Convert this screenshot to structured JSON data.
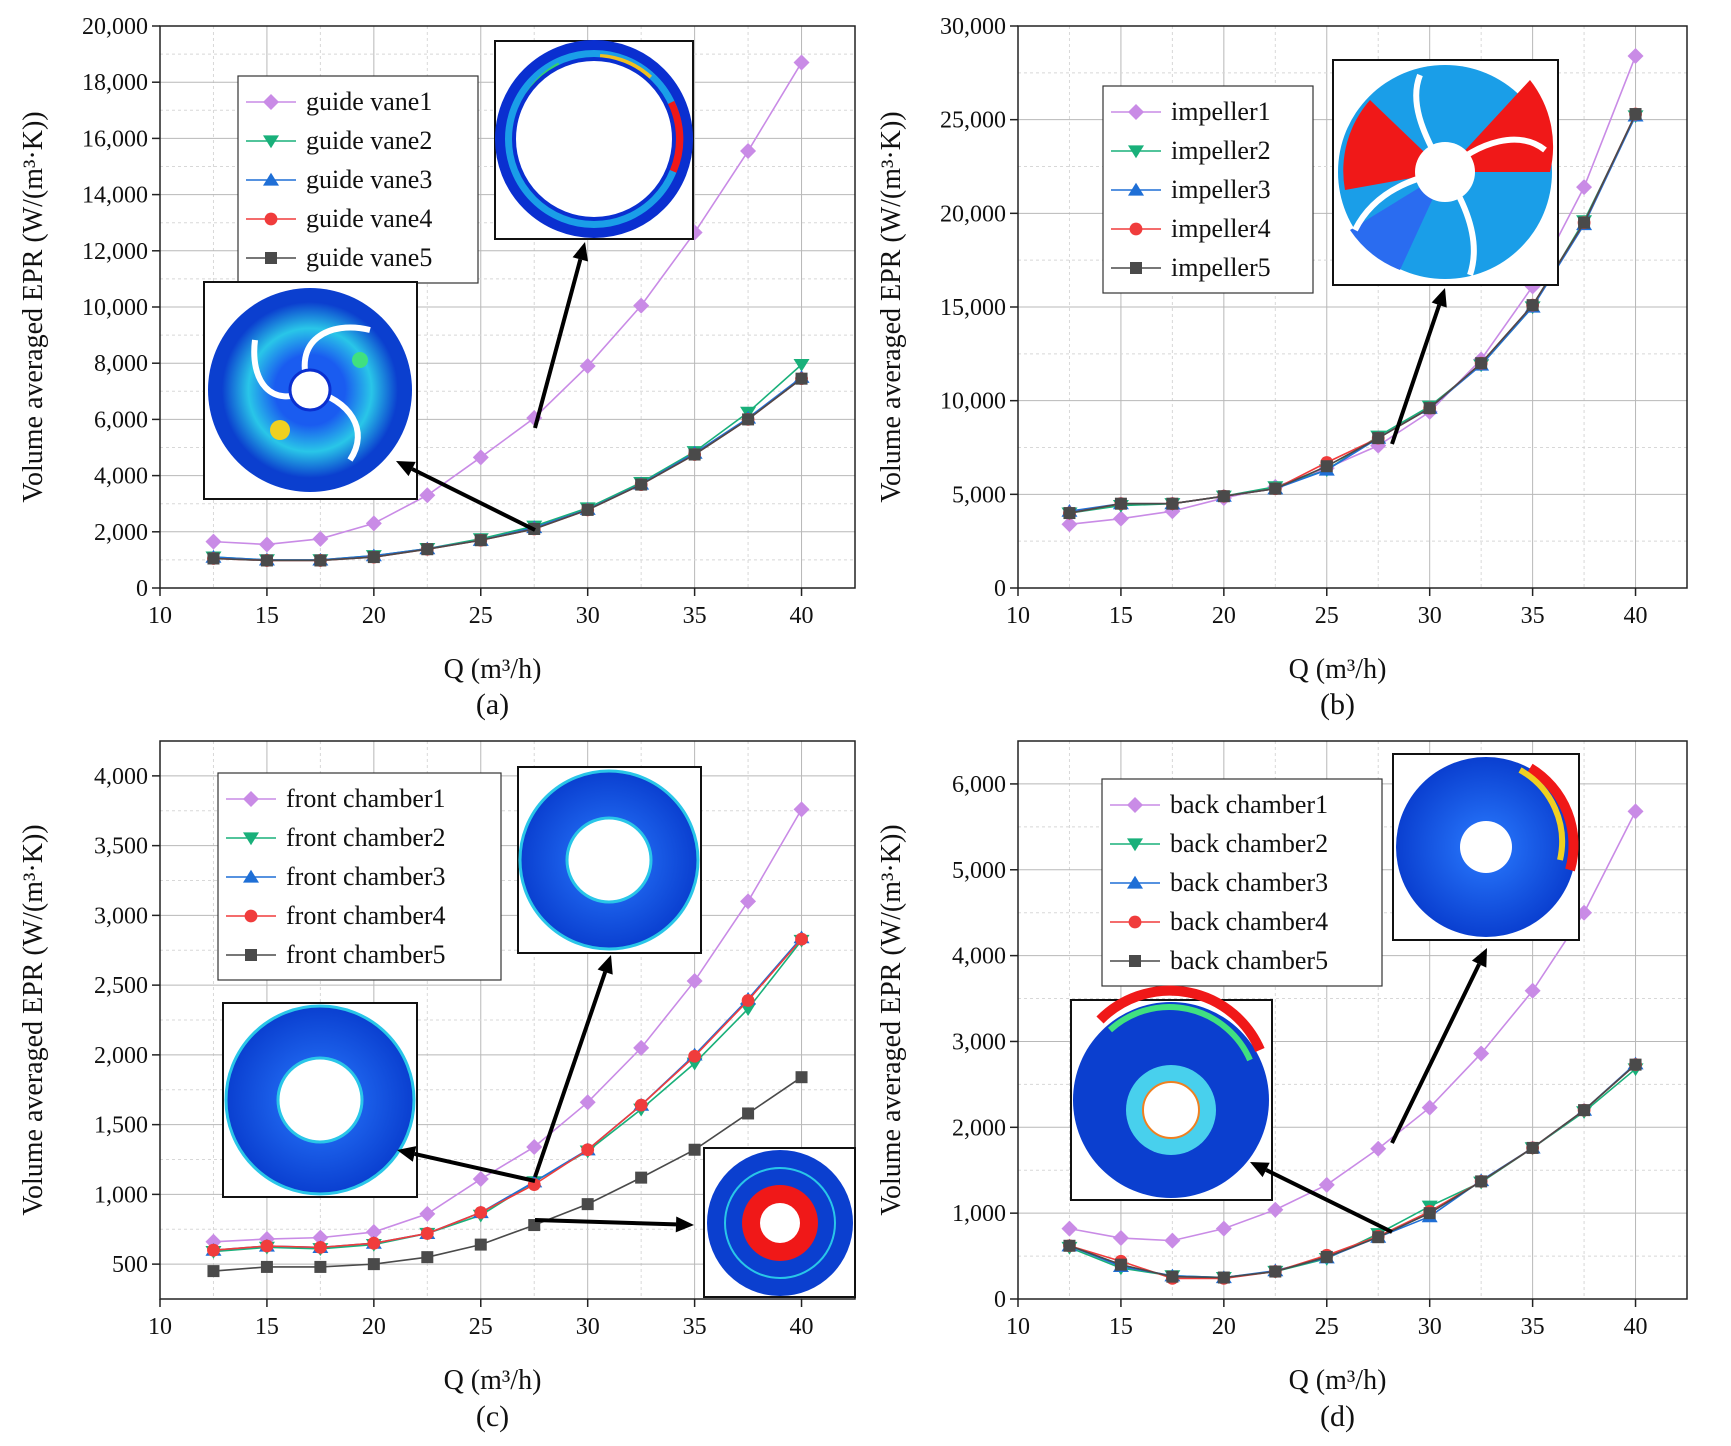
{
  "chart_data": [
    {
      "type": "line",
      "panel_label": "(a)",
      "xlabel": "Q (m³/h)",
      "ylabel": "Volume averaged EPR (W/(m³·K))",
      "xlim": [
        10,
        42.5
      ],
      "ylim": [
        0,
        20000
      ],
      "xticks": [
        10,
        15,
        20,
        25,
        30,
        35,
        40
      ],
      "yticks": [
        0,
        2000,
        4000,
        6000,
        8000,
        10000,
        12000,
        14000,
        16000,
        18000,
        20000
      ],
      "ytick_labels": [
        "0",
        "2,000",
        "4,000",
        "6,000",
        "8,000",
        "10,000",
        "12,000",
        "14,000",
        "16,000",
        "18,000",
        "20,000"
      ],
      "grid": true,
      "legend_position": "top-left",
      "x": [
        12.5,
        15,
        17.5,
        20,
        22.5,
        25,
        27.5,
        30,
        32.5,
        35,
        37.5,
        40
      ],
      "series": [
        {
          "name": "guide vane1",
          "color": "#c98be6",
          "marker": "diamond",
          "values": [
            1650,
            1550,
            1750,
            2300,
            3300,
            4650,
            6050,
            7900,
            10050,
            12650,
            15550,
            18700
          ]
        },
        {
          "name": "guide vane2",
          "color": "#19b07a",
          "marker": "triangle-down",
          "values": [
            1100,
            1000,
            1000,
            1150,
            1400,
            1750,
            2200,
            2850,
            3750,
            4850,
            6250,
            7950
          ]
        },
        {
          "name": "guide vane3",
          "color": "#1f6fd6",
          "marker": "triangle-up",
          "values": [
            1100,
            1000,
            1000,
            1150,
            1400,
            1700,
            2150,
            2800,
            3700,
            4800,
            6050,
            7500
          ]
        },
        {
          "name": "guide vane4",
          "color": "#f03c3c",
          "marker": "circle",
          "values": [
            1050,
            980,
            980,
            1100,
            1380,
            1700,
            2100,
            2780,
            3680,
            4750,
            6000,
            7450
          ]
        },
        {
          "name": "guide vane5",
          "color": "#4a4a4a",
          "marker": "square",
          "values": [
            1050,
            980,
            980,
            1100,
            1380,
            1700,
            2100,
            2780,
            3680,
            4750,
            6000,
            7450
          ]
        }
      ]
    },
    {
      "type": "line",
      "panel_label": "(b)",
      "xlabel": "Q (m³/h)",
      "ylabel": "Volume averaged EPR (W/(m³·K))",
      "xlim": [
        10,
        42.5
      ],
      "ylim": [
        0,
        30000
      ],
      "xticks": [
        10,
        15,
        20,
        25,
        30,
        35,
        40
      ],
      "yticks": [
        0,
        5000,
        10000,
        15000,
        20000,
        25000,
        30000
      ],
      "ytick_labels": [
        "0",
        "5,000",
        "10,000",
        "15,000",
        "20,000",
        "25,000",
        "30,000"
      ],
      "grid": true,
      "legend_position": "top-left",
      "x": [
        12.5,
        15,
        17.5,
        20,
        22.5,
        25,
        27.5,
        30,
        32.5,
        35,
        37.5,
        40
      ],
      "series": [
        {
          "name": "impeller1",
          "color": "#c98be6",
          "marker": "diamond",
          "values": [
            3400,
            3700,
            4100,
            4800,
            5400,
            6400,
            7600,
            9400,
            12200,
            16100,
            21400,
            28400
          ]
        },
        {
          "name": "impeller2",
          "color": "#19b07a",
          "marker": "triangle-down",
          "values": [
            4000,
            4400,
            4500,
            4900,
            5400,
            6300,
            8100,
            9700,
            11900,
            15000,
            19600,
            25200
          ]
        },
        {
          "name": "impeller3",
          "color": "#1f6fd6",
          "marker": "triangle-up",
          "values": [
            4100,
            4500,
            4500,
            4900,
            5300,
            6300,
            8000,
            9600,
            11900,
            15000,
            19400,
            25200
          ]
        },
        {
          "name": "impeller4",
          "color": "#f03c3c",
          "marker": "circle",
          "values": [
            4000,
            4500,
            4500,
            4900,
            5300,
            6700,
            8000,
            9600,
            12000,
            15100,
            19500,
            25300
          ]
        },
        {
          "name": "impeller5",
          "color": "#4a4a4a",
          "marker": "square",
          "values": [
            4000,
            4500,
            4500,
            4900,
            5300,
            6500,
            8000,
            9600,
            12000,
            15100,
            19500,
            25300
          ]
        }
      ]
    },
    {
      "type": "line",
      "panel_label": "(c)",
      "xlabel": "Q (m³/h)",
      "ylabel": "Volume averaged EPR (W/(m³·K))",
      "xlim": [
        10,
        42.5
      ],
      "ylim": [
        250,
        4250
      ],
      "xticks": [
        10,
        15,
        20,
        25,
        30,
        35,
        40
      ],
      "yticks": [
        500,
        1000,
        1500,
        2000,
        2500,
        3000,
        3500,
        4000
      ],
      "ytick_labels": [
        "500",
        "1,000",
        "1,500",
        "2,000",
        "2,500",
        "3,000",
        "3,500",
        "4,000"
      ],
      "grid": true,
      "legend_position": "top-left",
      "x": [
        12.5,
        15,
        17.5,
        20,
        22.5,
        25,
        27.5,
        30,
        32.5,
        35,
        37.5,
        40
      ],
      "series": [
        {
          "name": "front chamber1",
          "color": "#c98be6",
          "marker": "diamond",
          "values": [
            660,
            680,
            690,
            730,
            860,
            1110,
            1340,
            1660,
            2050,
            2530,
            3100,
            3760
          ]
        },
        {
          "name": "front chamber2",
          "color": "#19b07a",
          "marker": "triangle-down",
          "values": [
            590,
            620,
            610,
            640,
            720,
            850,
            1090,
            1310,
            1610,
            1940,
            2330,
            2820
          ]
        },
        {
          "name": "front chamber3",
          "color": "#1f6fd6",
          "marker": "triangle-up",
          "values": [
            600,
            630,
            620,
            650,
            720,
            870,
            1090,
            1320,
            1640,
            2000,
            2400,
            2840
          ]
        },
        {
          "name": "front chamber4",
          "color": "#f03c3c",
          "marker": "circle",
          "values": [
            600,
            630,
            620,
            650,
            720,
            870,
            1070,
            1320,
            1640,
            1990,
            2390,
            2830
          ]
        },
        {
          "name": "front chamber5",
          "color": "#4a4a4a",
          "marker": "square",
          "values": [
            450,
            480,
            480,
            500,
            550,
            640,
            780,
            930,
            1120,
            1320,
            1580,
            1840
          ]
        }
      ]
    },
    {
      "type": "line",
      "panel_label": "(d)",
      "xlabel": "Q (m³/h)",
      "ylabel": "Volume averaged EPR (W/(m³·K))",
      "xlim": [
        10,
        42.5
      ],
      "ylim": [
        0,
        6500
      ],
      "xticks": [
        10,
        15,
        20,
        25,
        30,
        35,
        40
      ],
      "yticks": [
        0,
        1000,
        2000,
        3000,
        4000,
        5000,
        6000
      ],
      "ytick_labels": [
        "0",
        "1,000",
        "2,000",
        "3,000",
        "4,000",
        "5,000",
        "6,000"
      ],
      "grid": true,
      "legend_position": "top-left",
      "x": [
        12.5,
        15,
        17.5,
        20,
        22.5,
        25,
        27.5,
        30,
        32.5,
        35,
        37.5,
        40
      ],
      "series": [
        {
          "name": "back chamber1",
          "color": "#c98be6",
          "marker": "diamond",
          "values": [
            820,
            710,
            680,
            820,
            1040,
            1330,
            1750,
            2230,
            2860,
            3590,
            4500,
            5680
          ]
        },
        {
          "name": "back chamber2",
          "color": "#19b07a",
          "marker": "triangle-down",
          "values": [
            600,
            360,
            270,
            250,
            320,
            470,
            760,
            1080,
            1360,
            1760,
            2180,
            2680
          ]
        },
        {
          "name": "back chamber3",
          "color": "#1f6fd6",
          "marker": "triangle-up",
          "values": [
            620,
            380,
            270,
            250,
            330,
            480,
            720,
            960,
            1380,
            1760,
            2200,
            2740
          ]
        },
        {
          "name": "back chamber4",
          "color": "#f03c3c",
          "marker": "circle",
          "values": [
            620,
            440,
            240,
            240,
            320,
            510,
            730,
            1020,
            1370,
            1760,
            2200,
            2730
          ]
        },
        {
          "name": "back chamber5",
          "color": "#4a4a4a",
          "marker": "square",
          "values": [
            620,
            400,
            260,
            250,
            320,
            490,
            720,
            1000,
            1370,
            1760,
            2200,
            2730
          ]
        }
      ]
    }
  ]
}
